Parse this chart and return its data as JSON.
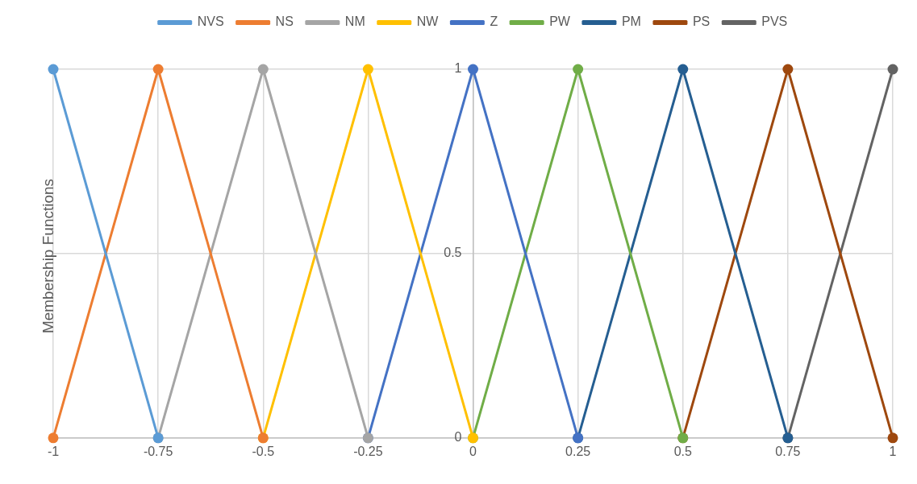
{
  "chart_data": {
    "type": "line",
    "ylabel": "Membership Functions",
    "xlim": [
      -1,
      1
    ],
    "xticks": [
      -1,
      -0.75,
      -0.5,
      -0.25,
      0,
      0.25,
      0.5,
      0.75,
      1
    ],
    "ylim": [
      0,
      1
    ],
    "yticks": [
      0,
      0.5,
      1
    ],
    "grid": true,
    "legend": "top",
    "marker": "circle",
    "line_style": "solid",
    "series": [
      {
        "name": "NVS",
        "color": "#5b9bd5",
        "x": [
          -1,
          -0.75
        ],
        "values": [
          1,
          0
        ]
      },
      {
        "name": "NS",
        "color": "#ed7d31",
        "x": [
          -1,
          -0.75,
          -0.5
        ],
        "values": [
          0,
          1,
          0
        ]
      },
      {
        "name": "NM",
        "color": "#a5a5a5",
        "x": [
          -0.75,
          -0.5,
          -0.25
        ],
        "values": [
          0,
          1,
          0
        ]
      },
      {
        "name": "NW",
        "color": "#ffc000",
        "x": [
          -0.5,
          -0.25,
          0
        ],
        "values": [
          0,
          1,
          0
        ]
      },
      {
        "name": "Z",
        "color": "#4472c4",
        "x": [
          -0.25,
          0,
          0.25
        ],
        "values": [
          0,
          1,
          0
        ]
      },
      {
        "name": "PW",
        "color": "#70ad47",
        "x": [
          0,
          0.25,
          0.5
        ],
        "values": [
          0,
          1,
          0
        ]
      },
      {
        "name": "PM",
        "color": "#255e91",
        "x": [
          0.25,
          0.5,
          0.75
        ],
        "values": [
          0,
          1,
          0
        ]
      },
      {
        "name": "PS",
        "color": "#9e480e",
        "x": [
          0.5,
          0.75,
          1
        ],
        "values": [
          0,
          1,
          0
        ]
      },
      {
        "name": "PVS",
        "color": "#636363",
        "x": [
          0.75,
          1
        ],
        "values": [
          0,
          1
        ]
      }
    ]
  }
}
